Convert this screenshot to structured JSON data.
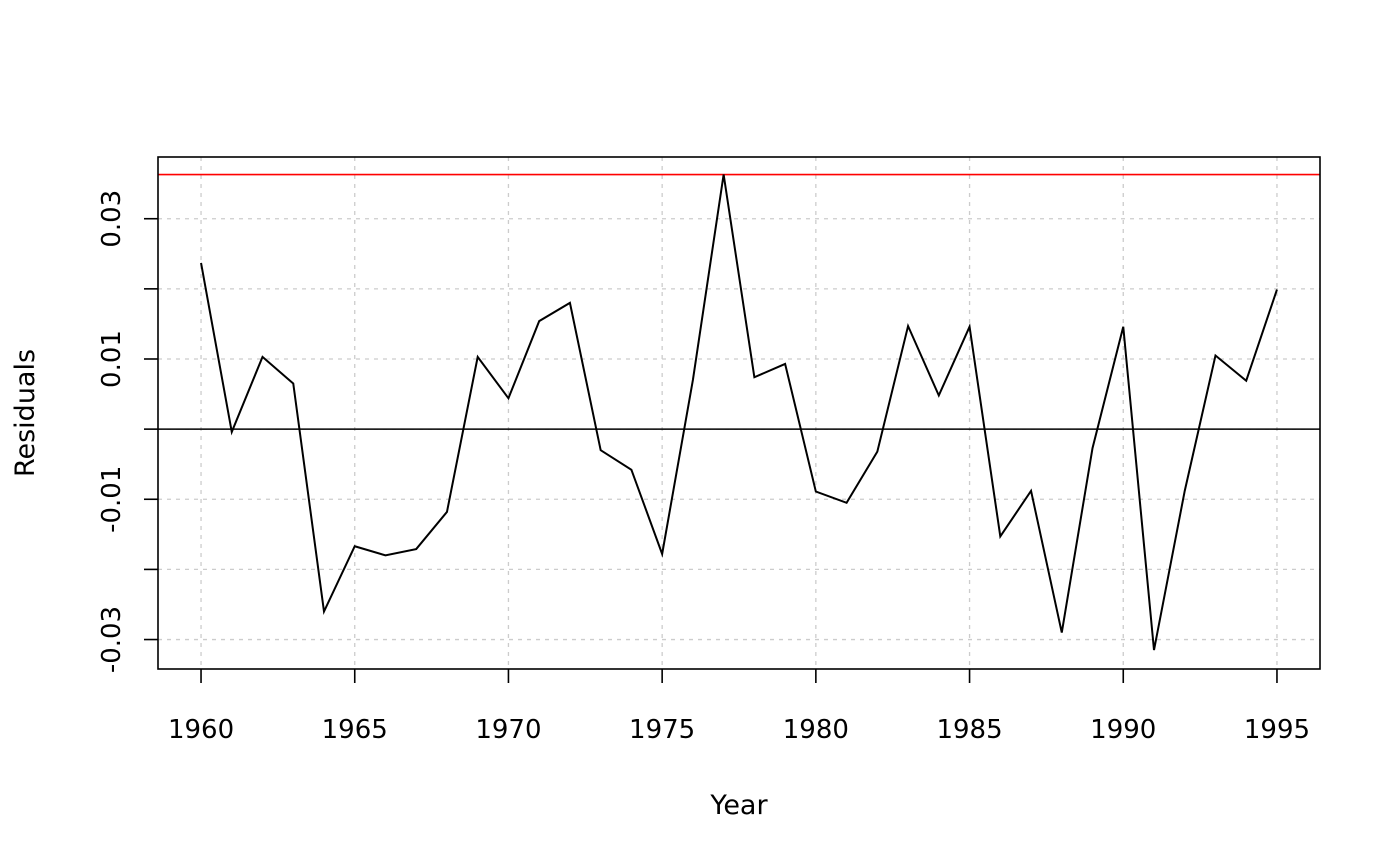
{
  "chart_data": {
    "type": "line",
    "title": "",
    "xlabel": "Year",
    "ylabel": "Residuals",
    "xlim": [
      1958.6,
      1996.4
    ],
    "ylim": [
      -0.0342,
      0.0388
    ],
    "x_ticks": [
      1960,
      1965,
      1970,
      1975,
      1980,
      1985,
      1990,
      1995
    ],
    "x_tick_labels": [
      "1960",
      "1965",
      "1970",
      "1975",
      "1980",
      "1985",
      "1990",
      "1995"
    ],
    "y_ticks": [
      -0.03,
      -0.02,
      -0.01,
      0,
      0.01,
      0.02,
      0.03
    ],
    "y_tick_labels": [
      "-0.03",
      "",
      "-0.01",
      "",
      "0.01",
      "",
      "0.03"
    ],
    "grid": true,
    "hline_zero": 0,
    "hline_threshold": 0.0363,
    "threshold_color": "#ff0000",
    "line_color": "#000000",
    "series": [
      {
        "x": [
          1960,
          1961,
          1962,
          1963,
          1964,
          1965,
          1966,
          1967,
          1968,
          1969,
          1970,
          1971,
          1972,
          1973,
          1974,
          1975,
          1976,
          1977,
          1978,
          1979,
          1980,
          1981,
          1982,
          1983,
          1984,
          1985,
          1986,
          1987,
          1988,
          1989,
          1990,
          1991,
          1992,
          1993,
          1994,
          1995
        ],
        "y": [
          0.0237,
          -0.0004,
          0.0103,
          0.0065,
          -0.026,
          -0.0167,
          -0.018,
          -0.0171,
          -0.0118,
          0.0103,
          0.0044,
          0.0154,
          0.018,
          -0.003,
          -0.0058,
          -0.0178,
          0.007,
          0.0363,
          0.0074,
          0.0093,
          -0.0089,
          -0.0105,
          -0.0032,
          0.0147,
          0.0048,
          0.0146,
          -0.0153,
          -0.0088,
          -0.029,
          -0.0027,
          0.0146,
          -0.0315,
          -0.0088,
          0.0105,
          0.0069,
          0.0199
        ]
      }
    ]
  }
}
